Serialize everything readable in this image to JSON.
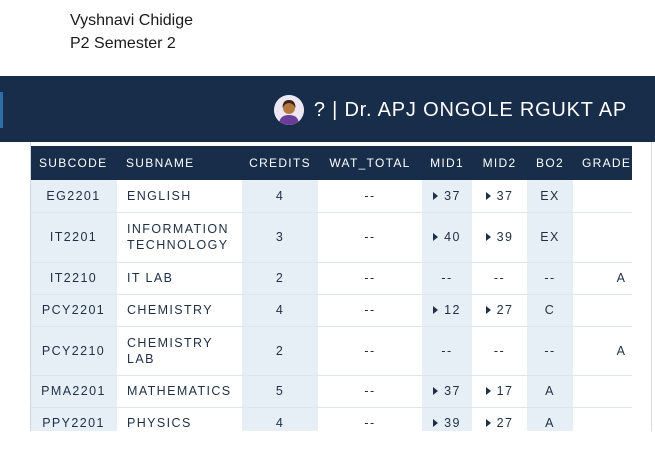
{
  "note": {
    "line1": "Vyshnavi Chidige",
    "line2": "P2 Semester 2"
  },
  "header": {
    "title": "? | Dr. APJ ONGOLE RGUKT AP",
    "avatar_icon": "user-avatar-icon",
    "background": "#182d49"
  },
  "table": {
    "columns": [
      "SUBCODE",
      "SUBNAME",
      "CREDITS",
      "WAT_TOTAL",
      "MID1",
      "MID2",
      "BO2",
      "GRADE"
    ],
    "rows": [
      {
        "subcode": "EG2201",
        "subname": "ENGLISH",
        "credits": "4",
        "wat_total": "--",
        "mid1": "37",
        "mid2": "37",
        "bo2": "EX",
        "grade": ""
      },
      {
        "subcode": "IT2201",
        "subname": "INFORMATION TECHNOLOGY",
        "credits": "3",
        "wat_total": "--",
        "mid1": "40",
        "mid2": "39",
        "bo2": "EX",
        "grade": ""
      },
      {
        "subcode": "IT2210",
        "subname": "IT LAB",
        "credits": "2",
        "wat_total": "--",
        "mid1": "--",
        "mid2": "--",
        "bo2": "--",
        "grade": "A"
      },
      {
        "subcode": "PCY2201",
        "subname": "CHEMISTRY",
        "credits": "4",
        "wat_total": "--",
        "mid1": "12",
        "mid2": "27",
        "bo2": "C",
        "grade": ""
      },
      {
        "subcode": "PCY2210",
        "subname": "CHEMISTRY LAB",
        "credits": "2",
        "wat_total": "--",
        "mid1": "--",
        "mid2": "--",
        "bo2": "--",
        "grade": "A"
      },
      {
        "subcode": "PMA2201",
        "subname": "MATHEMATICS",
        "credits": "5",
        "wat_total": "--",
        "mid1": "37",
        "mid2": "17",
        "bo2": "A",
        "grade": ""
      },
      {
        "subcode": "PPY2201",
        "subname": "PHYSICS",
        "credits": "4",
        "wat_total": "--",
        "mid1": "39",
        "mid2": "27",
        "bo2": "A",
        "grade": ""
      }
    ]
  }
}
